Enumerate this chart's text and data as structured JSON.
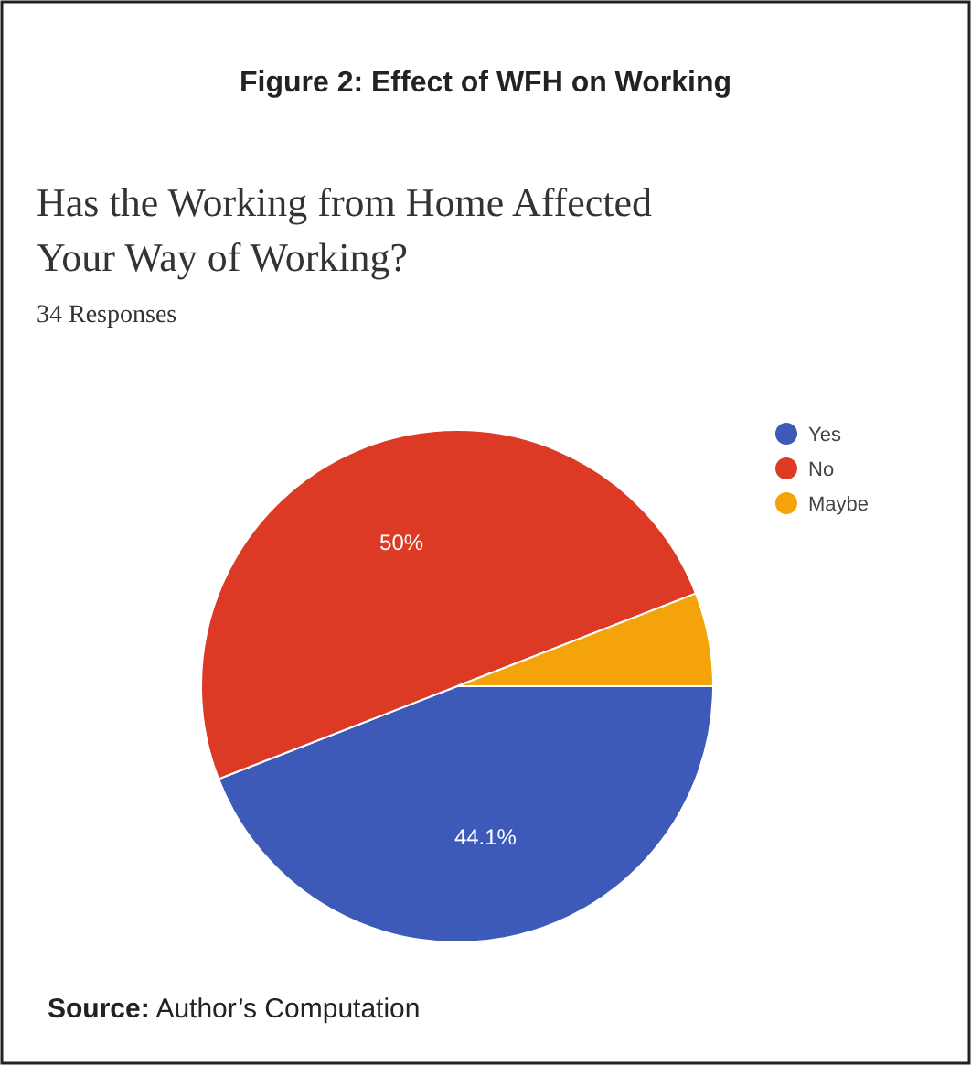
{
  "chart_data": {
    "type": "pie",
    "title": "Figure 2: Effect of WFH on Working",
    "subtitle": "Has the Working from Home Affected Your Way of Working?",
    "annotations": [
      "34 Responses",
      "Source: Author’s Computation"
    ],
    "categories": [
      "Yes",
      "No",
      "Maybe"
    ],
    "values": [
      44.1,
      50,
      5.9
    ],
    "colors": [
      "#3d5ab8",
      "#dc3a25",
      "#f4a40a"
    ],
    "value_labels": [
      "44.1%",
      "50%",
      null
    ],
    "legend": "top right"
  }
}
